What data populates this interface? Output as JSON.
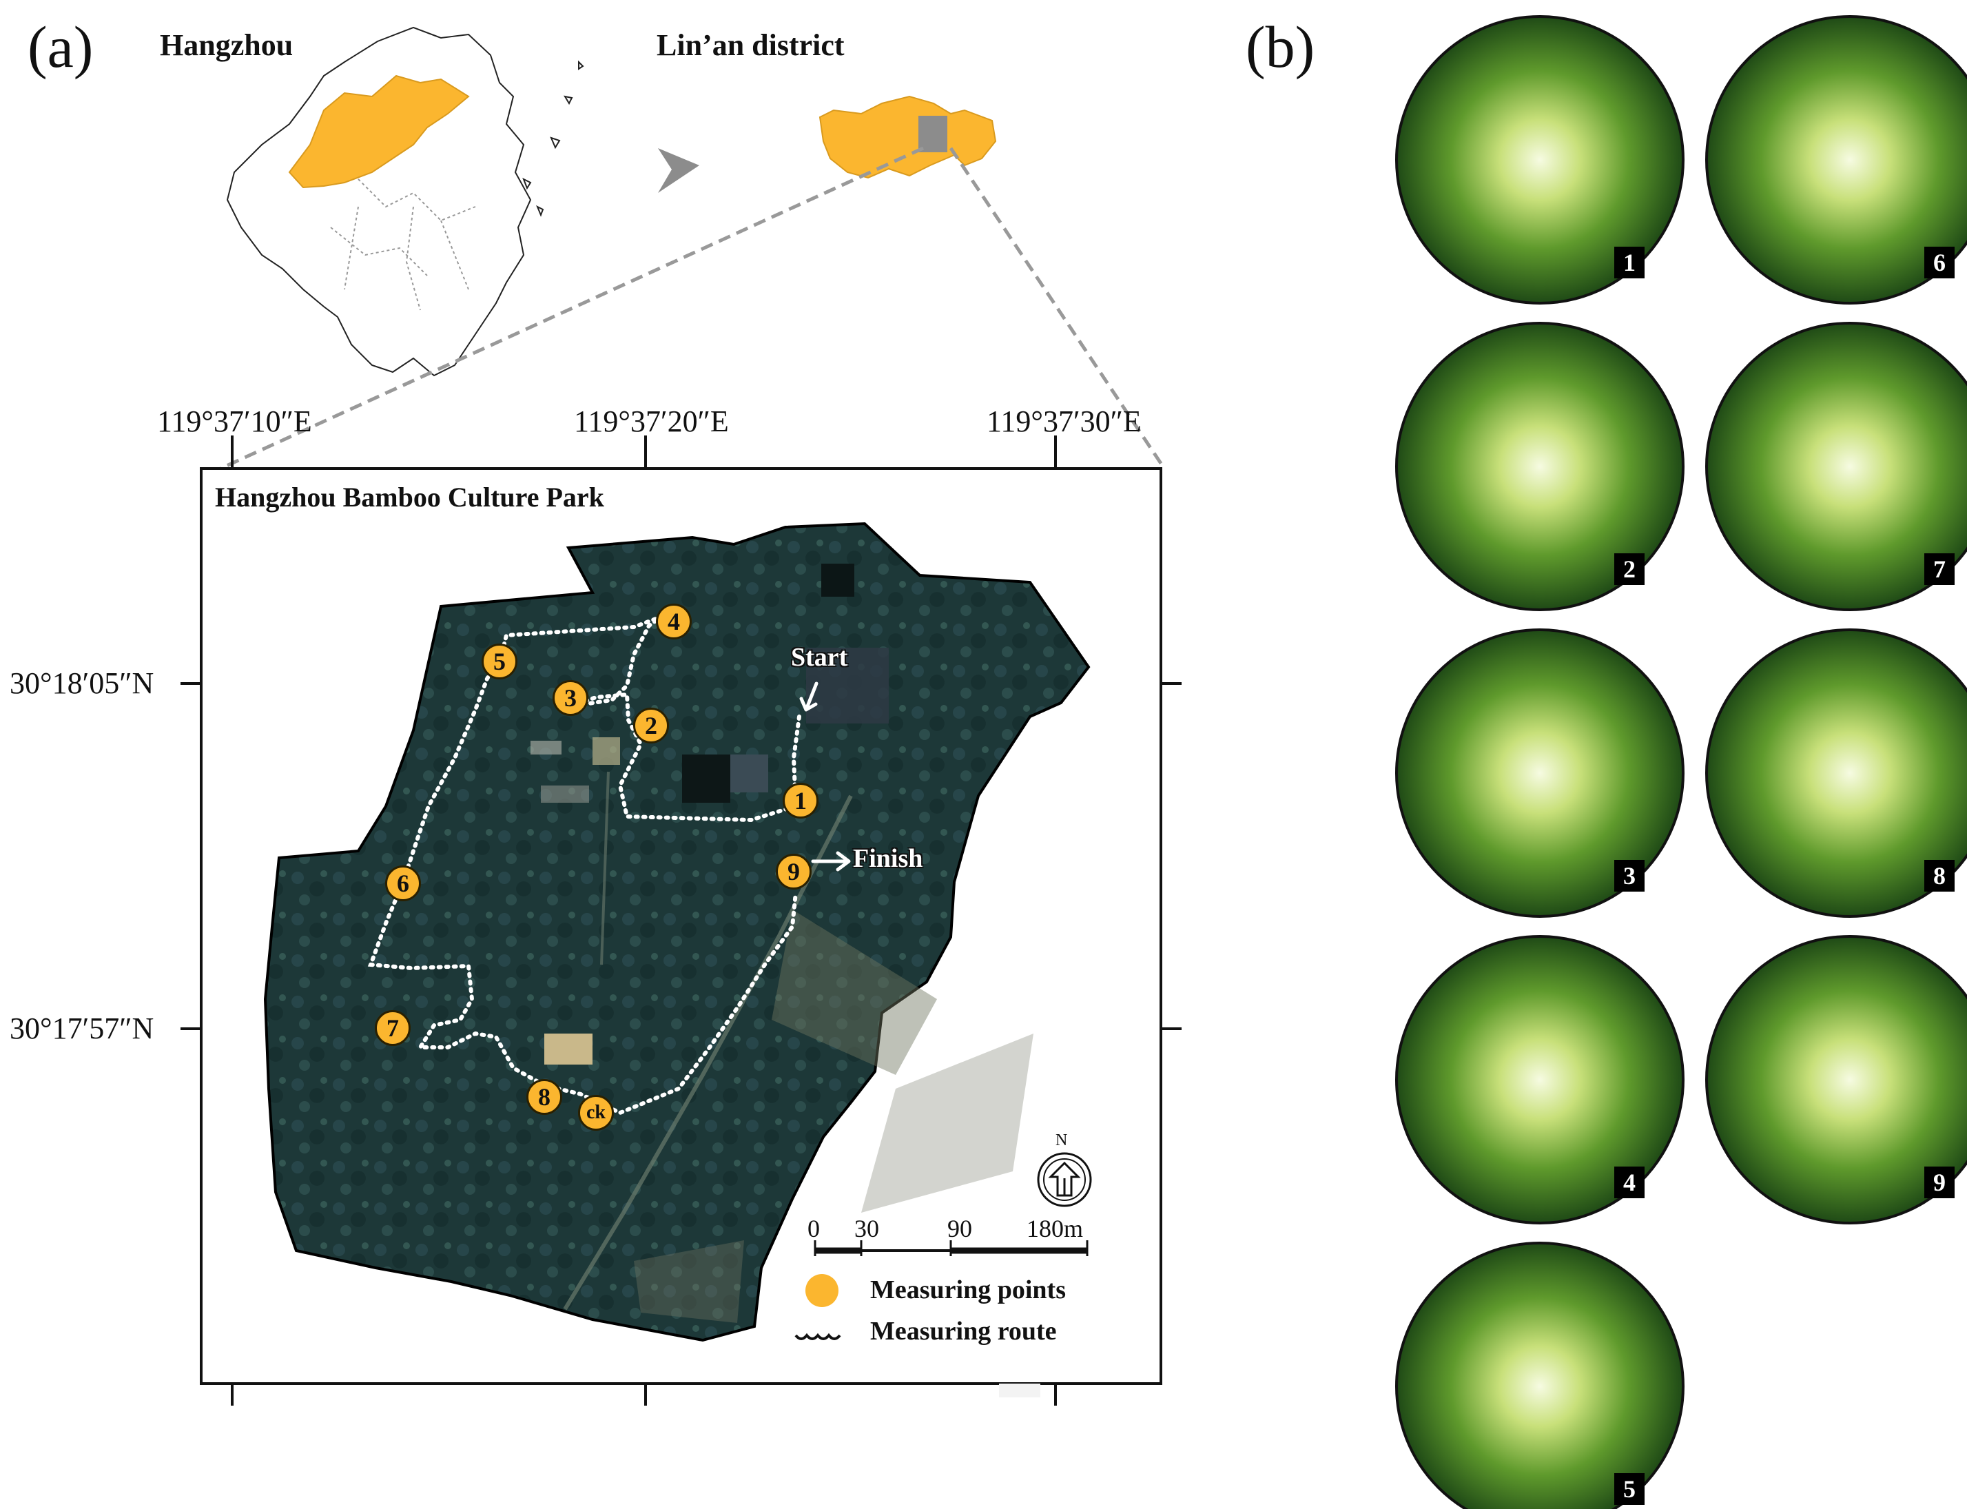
{
  "panel_a": {
    "label": "(a)",
    "hangzhou_label": "Hangzhou",
    "linan_label": "Lin’an district",
    "coords": {
      "lon": [
        "119°37′10″E",
        "119°37′20″E",
        "119°37′30″E"
      ],
      "lat": [
        "30°18′05″N",
        "30°17′57″N"
      ]
    },
    "park_title": "Hangzhou Bamboo Culture Park",
    "points": [
      {
        "label": "1"
      },
      {
        "label": "2"
      },
      {
        "label": "3"
      },
      {
        "label": "4"
      },
      {
        "label": "5"
      },
      {
        "label": "6"
      },
      {
        "label": "7"
      },
      {
        "label": "8"
      },
      {
        "label": "9"
      },
      {
        "label": "ck"
      }
    ],
    "start_label": "Start",
    "finish_label": "Finish",
    "north_label": "N",
    "scale": [
      "0",
      "30",
      "90",
      "180m"
    ],
    "legend": {
      "points": "Measuring points",
      "route": "Measuring route"
    },
    "colors": {
      "highlight": "#fbb62f",
      "satellite": "#1f3b3a",
      "route": "#ffffff"
    }
  },
  "panel_b": {
    "label": "(b)",
    "photos": [
      {
        "num": "1"
      },
      {
        "num": "6"
      },
      {
        "num": "2"
      },
      {
        "num": "7"
      },
      {
        "num": "3"
      },
      {
        "num": "8"
      },
      {
        "num": "4"
      },
      {
        "num": "9"
      },
      {
        "num": "5"
      }
    ]
  }
}
